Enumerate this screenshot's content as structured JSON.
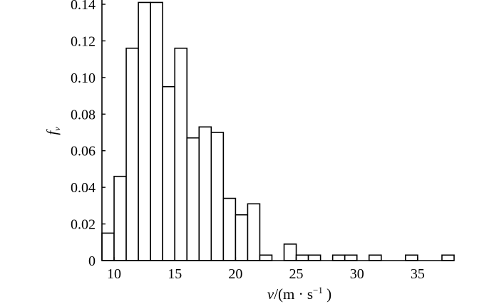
{
  "chart_data": {
    "type": "bar",
    "subtype": "histogram",
    "xlabel_parts": {
      "var": "v",
      "unit_prefix": "/(m · s",
      "exp": "−1",
      "unit_suffix": ")"
    },
    "ylabel_parts": {
      "main": "f",
      "sub": "v"
    },
    "xlim": [
      9,
      38
    ],
    "ylim": [
      0,
      0.14
    ],
    "x_ticks": [
      10,
      15,
      20,
      25,
      30,
      35
    ],
    "x_tick_labels": [
      "10",
      "15",
      "20",
      "25",
      "30",
      "35"
    ],
    "y_ticks": [
      0,
      0.02,
      0.04,
      0.06,
      0.08,
      0.1,
      0.12,
      0.14
    ],
    "y_tick_labels": [
      "0",
      "0.02",
      "0.04",
      "0.06",
      "0.08",
      "0.10",
      "0.12",
      "0.14"
    ],
    "bin_width": 1,
    "bins": [
      {
        "x0": 9,
        "value": 0.015
      },
      {
        "x0": 10,
        "value": 0.046
      },
      {
        "x0": 11,
        "value": 0.116
      },
      {
        "x0": 12,
        "value": 0.141
      },
      {
        "x0": 13,
        "value": 0.141
      },
      {
        "x0": 14,
        "value": 0.095
      },
      {
        "x0": 15,
        "value": 0.116
      },
      {
        "x0": 16,
        "value": 0.067
      },
      {
        "x0": 17,
        "value": 0.073
      },
      {
        "x0": 18,
        "value": 0.07
      },
      {
        "x0": 19,
        "value": 0.034
      },
      {
        "x0": 20,
        "value": 0.025
      },
      {
        "x0": 21,
        "value": 0.031
      },
      {
        "x0": 22,
        "value": 0.003
      },
      {
        "x0": 24,
        "value": 0.009
      },
      {
        "x0": 25,
        "value": 0.003
      },
      {
        "x0": 26,
        "value": 0.003
      },
      {
        "x0": 28,
        "value": 0.003
      },
      {
        "x0": 29,
        "value": 0.003
      },
      {
        "x0": 31,
        "value": 0.003
      },
      {
        "x0": 34,
        "value": 0.003
      },
      {
        "x0": 37,
        "value": 0.003
      }
    ],
    "grid": false,
    "legend": "none"
  }
}
